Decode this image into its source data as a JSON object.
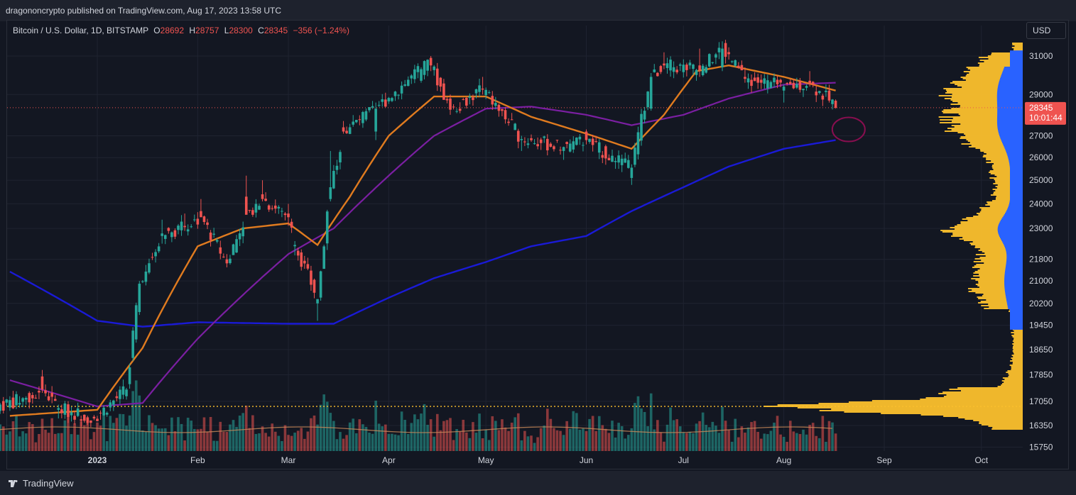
{
  "publisher_line": "dragononcrypto published on TradingView.com, Aug 17, 2023 13:58 UTC",
  "legend": {
    "symbol": "Bitcoin / U.S. Dollar, 1D, BITSTAMP",
    "o_label": "O",
    "o_value": "28692",
    "h_label": "H",
    "h_value": "28757",
    "l_label": "L",
    "l_value": "28300",
    "c_label": "C",
    "c_value": "28345",
    "change": "−356 (−1.24%)"
  },
  "currency_button": "USD",
  "brand": "TradingView",
  "price_tag": {
    "price": "28345",
    "countdown": "10:01:44"
  },
  "colors": {
    "up": "#26a69a",
    "down": "#ef5350",
    "ma_short": "#e07b1f",
    "ma_mid": "#7b1fa2",
    "ma_long": "#1a1ad6",
    "volume_profile": "#fbc02d",
    "volume_profile_va": "#2962ff",
    "poc_line": "#fbc02d",
    "annotation_circle": "#880e4f"
  },
  "chart_data": {
    "type": "candlestick",
    "symbol": "BTCUSD",
    "exchange": "BITSTAMP",
    "timeframe": "1D",
    "scale": "log",
    "y_ticks": [
      31000,
      29000,
      27000,
      26000,
      25000,
      24000,
      23000,
      21800,
      21000,
      20200,
      19450,
      18650,
      17850,
      17050,
      16350,
      15750
    ],
    "x_ticks": [
      "2023",
      "Feb",
      "Mar",
      "Apr",
      "May",
      "Jun",
      "Jul",
      "Aug",
      "Sep",
      "Oct"
    ],
    "x_tick_dates": [
      "2023-01-01",
      "2023-02-01",
      "2023-03-01",
      "2023-04-01",
      "2023-05-01",
      "2023-06-01",
      "2023-07-01",
      "2023-08-01",
      "2023-09-01",
      "2023-10-01"
    ],
    "ohlc_approx": [
      [
        "2022-12-01",
        16950,
        17050,
        16800,
        16900
      ],
      [
        "2022-12-10",
        17100,
        17200,
        16950,
        17150
      ],
      [
        "2022-12-15",
        17800,
        18000,
        17300,
        17400
      ],
      [
        "2022-12-20",
        16800,
        16950,
        16550,
        16850
      ],
      [
        "2022-12-31",
        16600,
        16650,
        16500,
        16550
      ],
      [
        "2023-01-10",
        17200,
        17450,
        17100,
        17400
      ],
      [
        "2023-01-14",
        19900,
        21000,
        19800,
        20900
      ],
      [
        "2023-01-21",
        22700,
        23350,
        22400,
        22800
      ],
      [
        "2023-01-28",
        23100,
        23600,
        22900,
        23050
      ],
      [
        "2023-02-02",
        23700,
        24200,
        23500,
        23450
      ],
      [
        "2023-02-10",
        21800,
        22000,
        21500,
        21650
      ],
      [
        "2023-02-16",
        24300,
        25200,
        23600,
        23550
      ],
      [
        "2023-02-21",
        24400,
        25000,
        24100,
        24200
      ],
      [
        "2023-03-01",
        23600,
        24000,
        23100,
        23450
      ],
      [
        "2023-03-03",
        22300,
        22500,
        21950,
        22350
      ],
      [
        "2023-03-10",
        20200,
        20350,
        19600,
        20350
      ],
      [
        "2023-03-14",
        24200,
        26300,
        24100,
        24700
      ],
      [
        "2023-03-18",
        27400,
        27700,
        27100,
        27200
      ],
      [
        "2023-03-28",
        27200,
        28600,
        26800,
        28300
      ],
      [
        "2023-04-11",
        29700,
        30400,
        29600,
        30300
      ],
      [
        "2023-04-14",
        30900,
        31000,
        30200,
        30500
      ],
      [
        "2023-04-20",
        28800,
        29000,
        28000,
        28250
      ],
      [
        "2023-04-30",
        29300,
        29900,
        29000,
        29250
      ],
      [
        "2023-05-12",
        26800,
        27000,
        26300,
        26850
      ],
      [
        "2023-05-25",
        26300,
        26500,
        25900,
        26480
      ],
      [
        "2023-06-01",
        27200,
        27300,
        26600,
        26800
      ],
      [
        "2023-06-10",
        25800,
        26000,
        25500,
        25850
      ],
      [
        "2023-06-15",
        25100,
        25700,
        24800,
        25550
      ],
      [
        "2023-06-21",
        28300,
        30100,
        28200,
        29900
      ],
      [
        "2023-06-25",
        30600,
        31200,
        30300,
        30500
      ],
      [
        "2023-07-06",
        30500,
        31400,
        29900,
        30250
      ],
      [
        "2023-07-13",
        30400,
        31800,
        30200,
        31400
      ],
      [
        "2023-07-20",
        29900,
        30400,
        29600,
        29800
      ],
      [
        "2023-08-01",
        29200,
        29500,
        28600,
        29400
      ],
      [
        "2023-08-09",
        29700,
        30200,
        29400,
        29550
      ],
      [
        "2023-08-15",
        29200,
        29500,
        28600,
        28700
      ],
      [
        "2023-08-17",
        28692,
        28757,
        28300,
        28345
      ]
    ],
    "ma_short": [
      [
        "2022-12-01",
        16600
      ],
      [
        "2023-01-01",
        16800
      ],
      [
        "2023-01-15",
        18700
      ],
      [
        "2023-02-01",
        22300
      ],
      [
        "2023-02-15",
        23000
      ],
      [
        "2023-03-01",
        23200
      ],
      [
        "2023-03-10",
        22350
      ],
      [
        "2023-03-20",
        24300
      ],
      [
        "2023-04-01",
        27000
      ],
      [
        "2023-04-15",
        28900
      ],
      [
        "2023-05-01",
        28900
      ],
      [
        "2023-05-15",
        27900
      ],
      [
        "2023-06-01",
        27100
      ],
      [
        "2023-06-15",
        26400
      ],
      [
        "2023-06-25",
        28000
      ],
      [
        "2023-07-05",
        30200
      ],
      [
        "2023-07-15",
        30500
      ],
      [
        "2023-08-01",
        29900
      ],
      [
        "2023-08-17",
        29200
      ]
    ],
    "ma_mid": [
      [
        "2022-12-01",
        17800
      ],
      [
        "2023-01-01",
        16900
      ],
      [
        "2023-01-15",
        17000
      ],
      [
        "2023-02-01",
        19000
      ],
      [
        "2023-02-15",
        20500
      ],
      [
        "2023-03-01",
        22000
      ],
      [
        "2023-03-15",
        23000
      ],
      [
        "2023-04-01",
        25200
      ],
      [
        "2023-04-15",
        27000
      ],
      [
        "2023-05-01",
        28300
      ],
      [
        "2023-05-15",
        28400
      ],
      [
        "2023-06-01",
        28000
      ],
      [
        "2023-06-15",
        27500
      ],
      [
        "2023-07-01",
        28000
      ],
      [
        "2023-07-15",
        28800
      ],
      [
        "2023-08-01",
        29500
      ],
      [
        "2023-08-17",
        29600
      ]
    ],
    "ma_long": [
      [
        "2022-12-01",
        21600
      ],
      [
        "2023-01-01",
        19600
      ],
      [
        "2023-01-15",
        19400
      ],
      [
        "2023-02-01",
        19550
      ],
      [
        "2023-03-01",
        19500
      ],
      [
        "2023-03-15",
        19500
      ],
      [
        "2023-04-01",
        20400
      ],
      [
        "2023-04-15",
        21100
      ],
      [
        "2023-05-01",
        21700
      ],
      [
        "2023-05-15",
        22300
      ],
      [
        "2023-06-01",
        22700
      ],
      [
        "2023-06-15",
        23700
      ],
      [
        "2023-07-01",
        24700
      ],
      [
        "2023-07-15",
        25600
      ],
      [
        "2023-08-01",
        26400
      ],
      [
        "2023-08-17",
        26800
      ]
    ],
    "poc_price": 16900,
    "current_price": 28345
  }
}
